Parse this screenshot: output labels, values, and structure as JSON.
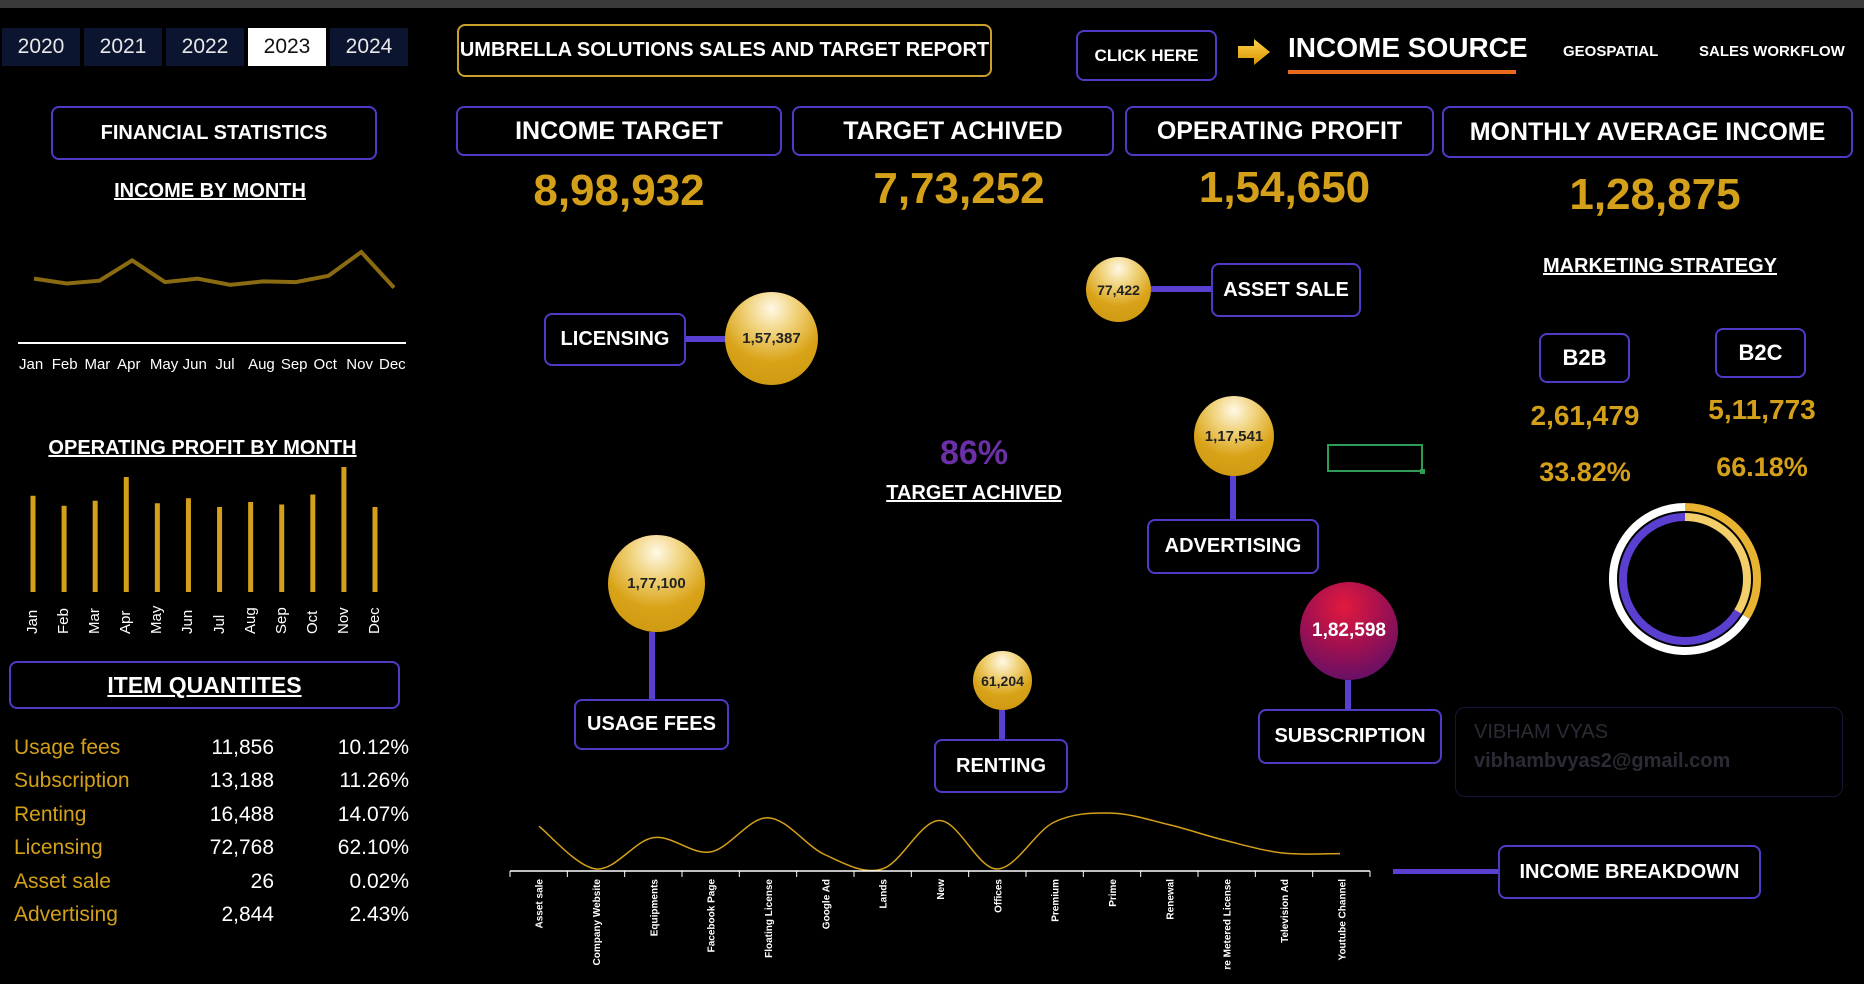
{
  "years": [
    "2020",
    "2021",
    "2022",
    "2023",
    "2024"
  ],
  "active_year": "2023",
  "report_title": "UMBRELLA SOLUTIONS SALES AND TARGET REPORT",
  "click_here": "CLICK HERE",
  "income_source": "INCOME SOURCE",
  "nav": {
    "geospatial": "GEOSPATIAL",
    "sales_workflow": "SALES WORKFLOW"
  },
  "colors": {
    "accent_gold": "#d4a019",
    "accent_purple": "#5a3fd0",
    "bg": "#000000"
  },
  "financial_statistics": "FINANCIAL STATISTICS",
  "income_by_month": {
    "title": "INCOME BY MONTH",
    "months": [
      "Jan",
      "Feb",
      "Mar",
      "Apr",
      "May",
      "Jun",
      "Jul",
      "Aug",
      "Sep",
      "Oct",
      "Nov",
      "Dec"
    ]
  },
  "operating_profit_by_month": {
    "title": "OPERATING PROFIT BY MONTH",
    "months": [
      "Jan",
      "Feb",
      "Mar",
      "Apr",
      "May",
      "Jun",
      "Jul",
      "Aug",
      "Sep",
      "Oct",
      "Nov",
      "Dec"
    ]
  },
  "item_quantities": {
    "title": "ITEM QUANTITES",
    "rows": [
      {
        "name": "Usage fees",
        "qty": "11,856",
        "pct": "10.12%"
      },
      {
        "name": "Subscription",
        "qty": "13,188",
        "pct": "11.26%"
      },
      {
        "name": "Renting",
        "qty": "16,488",
        "pct": "14.07%"
      },
      {
        "name": "Licensing",
        "qty": "72,768",
        "pct": "62.10%"
      },
      {
        "name": "Asset sale",
        "qty": "26",
        "pct": "0.02%"
      },
      {
        "name": "Advertising",
        "qty": "2,844",
        "pct": "2.43%"
      }
    ]
  },
  "kpis": {
    "income_target": {
      "label": "INCOME TARGET",
      "value": "8,98,932"
    },
    "target_achived": {
      "label": "TARGET ACHIVED",
      "value": "7,73,252"
    },
    "operating_profit": {
      "label": "OPERATING PROFIT",
      "value": "1,54,650"
    },
    "monthly_average_income": {
      "label": "MONTHLY AVERAGE INCOME",
      "value": "1,28,875"
    }
  },
  "income_sources": {
    "licensing": {
      "label": "LICENSING",
      "value": "1,57,387"
    },
    "asset_sale": {
      "label": "ASSET SALE",
      "value": "77,422"
    },
    "advertising": {
      "label": "ADVERTISING",
      "value": "1,17,541"
    },
    "usage_fees": {
      "label": "USAGE FEES",
      "value": "1,77,100"
    },
    "renting": {
      "label": "RENTING",
      "value": "61,204"
    },
    "subscription": {
      "label": "SUBSCRIPTION",
      "value": "1,82,598"
    }
  },
  "target_percent": "86%",
  "target_percent_label": "TARGET ACHIVED",
  "marketing_strategy": {
    "title": "MARKETING STRATEGY",
    "b2b": {
      "label": "B2B",
      "value": "2,61,479",
      "pct": "33.82%"
    },
    "b2c": {
      "label": "B2C",
      "value": "5,11,773",
      "pct": "66.18%"
    }
  },
  "watermark": {
    "name": "VIBHAM VYAS",
    "email": "vibhambvyas2@gmail.com"
  },
  "income_breakdown": {
    "label": "INCOME BREAKDOWN",
    "categories": [
      "Asset sale",
      "Company Website",
      "Equipments",
      "Facebook Page",
      "Floating License",
      "Google Ad",
      "Lands",
      "New",
      "Offices",
      "Premium",
      "Prime",
      "Renewal",
      "Software Metered License",
      "Television Ad",
      "Youtube Channel"
    ]
  },
  "chart_data": [
    {
      "type": "line",
      "title": "INCOME BY MONTH",
      "categories": [
        "Jan",
        "Feb",
        "Mar",
        "Apr",
        "May",
        "Jun",
        "Jul",
        "Aug",
        "Sep",
        "Oct",
        "Nov",
        "Dec"
      ],
      "values": [
        0.52,
        0.45,
        0.49,
        0.78,
        0.47,
        0.52,
        0.43,
        0.48,
        0.47,
        0.56,
        0.9,
        0.39
      ],
      "grid": false
    },
    {
      "type": "bar",
      "title": "OPERATING PROFIT BY MONTH",
      "categories": [
        "Jan",
        "Feb",
        "Mar",
        "Apr",
        "May",
        "Jun",
        "Jul",
        "Aug",
        "Sep",
        "Oct",
        "Nov",
        "Dec"
      ],
      "values": [
        0.77,
        0.69,
        0.73,
        0.92,
        0.71,
        0.75,
        0.68,
        0.72,
        0.7,
        0.78,
        1.0,
        0.68
      ],
      "grid": false
    },
    {
      "type": "line",
      "title": "",
      "categories": [
        "Asset sale",
        "Company Website",
        "Equipments",
        "Facebook Page",
        "Floating License",
        "Google Ad",
        "Lands",
        "New",
        "Offices",
        "Premium",
        "Prime",
        "Renewal",
        "Software Metered License",
        "Television Ad",
        "Youtube Channel"
      ],
      "values": [
        0.75,
        0.0,
        0.55,
        0.3,
        0.9,
        0.25,
        0.0,
        0.85,
        0.0,
        0.82,
        0.98,
        0.78,
        0.5,
        0.28,
        0.27
      ],
      "grid": false
    },
    {
      "type": "pie",
      "title": "",
      "categories": [
        "B2B",
        "B2C"
      ],
      "values": [
        33.82,
        66.18
      ]
    }
  ]
}
